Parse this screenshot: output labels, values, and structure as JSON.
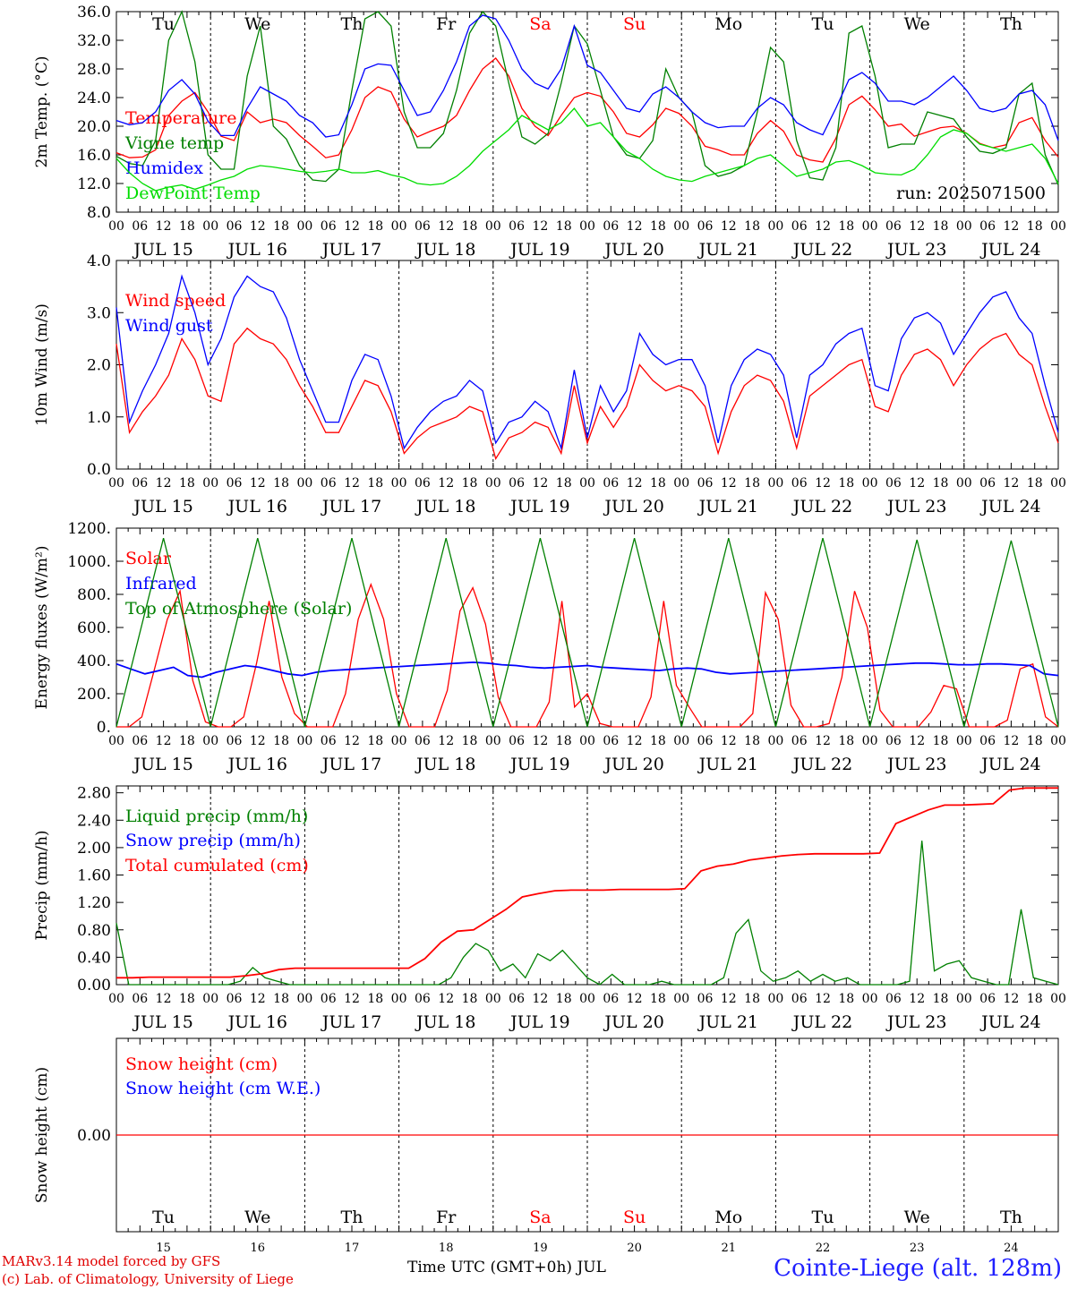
{
  "chart_data": [
    {
      "type": "line",
      "ylabel": "2m Temp. (°C)",
      "ylim": [
        8.0,
        36.0
      ],
      "yticks": [
        "8.0",
        "12.0",
        "16.0",
        "20.0",
        "24.0",
        "28.0",
        "32.0",
        "36.0"
      ],
      "annotation": "run: 2025071500",
      "series": [
        {
          "name": "Temperature",
          "color": "#ff0000",
          "values": [
            16.3,
            15.6,
            15.7,
            16.7,
            21.5,
            23.5,
            24.7,
            22.0,
            18.6,
            18.0,
            22.0,
            20.5,
            21.0,
            20.5,
            18.7,
            17.2,
            15.6,
            16.0,
            19.5,
            24.0,
            25.5,
            24.8,
            21.0,
            18.5,
            19.3,
            20.0,
            21.5,
            25.0,
            28.0,
            29.5,
            27.0,
            22.5,
            20.0,
            18.7,
            21.5,
            24.0,
            24.7,
            24.2,
            22.0,
            19.0,
            18.5,
            20.2,
            22.5,
            21.8,
            20.0,
            17.2,
            16.7,
            16.0,
            16.0,
            19.0,
            20.8,
            19.3,
            16.0,
            15.3,
            15.0,
            18.3,
            23.0,
            24.2,
            22.3,
            20.0,
            20.3,
            18.6,
            19.2,
            19.8,
            20.0,
            19.0,
            17.6,
            17.0,
            17.4,
            20.5,
            21.2,
            18.0,
            15.7
          ]
        },
        {
          "name": "Vigne temp",
          "color": "#008000",
          "values": [
            15.8,
            14.8,
            14.5,
            18.0,
            32.0,
            36.0,
            29.0,
            16.0,
            14.0,
            14.0,
            27.0,
            34.0,
            20.0,
            18.2,
            14.5,
            12.5,
            12.3,
            14.0,
            25.0,
            35.0,
            36.0,
            34.0,
            22.0,
            17.0,
            17.0,
            19.0,
            25.0,
            33.0,
            36.0,
            34.0,
            26.0,
            18.5,
            17.5,
            19.0,
            26.0,
            34.0,
            31.5,
            25.0,
            18.5,
            16.0,
            15.5,
            18.0,
            28.0,
            24.0,
            22.0,
            14.5,
            13.0,
            13.5,
            14.5,
            22.0,
            31.0,
            29.0,
            18.0,
            12.8,
            12.5,
            17.0,
            33.0,
            34.0,
            27.0,
            17.0,
            17.5,
            17.5,
            22.0,
            21.5,
            21.0,
            18.5,
            16.5,
            16.2,
            17.0,
            24.5,
            26.0,
            16.0,
            11.8
          ]
        },
        {
          "name": "Humidex",
          "color": "#0000ff",
          "values": [
            20.8,
            20.2,
            20.5,
            22.0,
            25.0,
            26.5,
            24.5,
            20.7,
            18.7,
            18.7,
            22.5,
            25.5,
            24.5,
            23.5,
            21.5,
            20.5,
            18.5,
            18.8,
            23.0,
            28.0,
            28.7,
            28.5,
            25.0,
            21.5,
            22.0,
            25.0,
            29.0,
            34.0,
            35.5,
            35.0,
            32.0,
            28.0,
            26.0,
            25.2,
            28.0,
            34.0,
            28.5,
            27.5,
            25.0,
            22.5,
            22.0,
            24.5,
            25.5,
            24.0,
            22.0,
            20.5,
            19.8,
            20.0,
            20.0,
            22.5,
            24.0,
            23.0,
            20.5,
            19.5,
            18.8,
            22.5,
            26.5,
            27.5,
            26.0,
            23.5,
            23.5,
            23.0,
            24.0,
            25.5,
            27.0,
            25.0,
            22.5,
            22.0,
            22.5,
            24.5,
            25.0,
            23.0,
            18.0
          ]
        },
        {
          "name": "DewPoint Temp",
          "color": "#00dd00",
          "values": [
            15.5,
            13.5,
            12.0,
            11.0,
            11.5,
            11.8,
            11.2,
            11.8,
            12.5,
            13.0,
            14.0,
            14.5,
            14.3,
            14.0,
            13.7,
            13.5,
            13.7,
            14.0,
            13.5,
            13.5,
            13.8,
            13.2,
            12.8,
            12.0,
            11.8,
            12.0,
            13.0,
            14.5,
            16.5,
            18.0,
            19.5,
            21.5,
            20.5,
            19.5,
            20.5,
            22.5,
            20.0,
            20.5,
            18.5,
            16.5,
            15.5,
            14.0,
            13.0,
            12.5,
            12.3,
            13.0,
            13.5,
            14.0,
            14.5,
            15.5,
            16.0,
            14.5,
            13.0,
            13.5,
            14.0,
            15.0,
            15.2,
            14.5,
            13.5,
            13.3,
            13.2,
            14.0,
            16.0,
            18.5,
            19.5,
            19.0,
            17.5,
            17.0,
            16.5,
            17.0,
            17.5,
            15.5,
            12.0
          ]
        }
      ]
    },
    {
      "type": "line",
      "ylabel": "10m Wind (m/s)",
      "ylim": [
        0.0,
        4.0
      ],
      "yticks": [
        "0.0",
        "1.0",
        "2.0",
        "3.0",
        "4.0"
      ],
      "series": [
        {
          "name": "Wind speed",
          "color": "#ff0000",
          "values": [
            2.4,
            0.7,
            1.1,
            1.4,
            1.8,
            2.5,
            2.1,
            1.4,
            1.3,
            2.4,
            2.7,
            2.5,
            2.4,
            2.1,
            1.6,
            1.2,
            0.7,
            0.7,
            1.2,
            1.7,
            1.6,
            1.1,
            0.3,
            0.6,
            0.8,
            0.9,
            1.0,
            1.2,
            1.1,
            0.2,
            0.6,
            0.7,
            0.9,
            0.8,
            0.3,
            1.6,
            0.5,
            1.2,
            0.8,
            1.2,
            2.0,
            1.7,
            1.5,
            1.6,
            1.5,
            1.2,
            0.3,
            1.1,
            1.6,
            1.8,
            1.7,
            1.3,
            0.4,
            1.4,
            1.6,
            1.8,
            2.0,
            2.1,
            1.2,
            1.1,
            1.8,
            2.2,
            2.3,
            2.1,
            1.6,
            2.0,
            2.3,
            2.5,
            2.6,
            2.2,
            2.0,
            1.2,
            0.5
          ]
        },
        {
          "name": "Wind gust",
          "color": "#0000ff",
          "values": [
            3.1,
            0.9,
            1.5,
            2.0,
            2.6,
            3.7,
            3.0,
            2.0,
            2.5,
            3.3,
            3.7,
            3.5,
            3.4,
            2.9,
            2.1,
            1.5,
            0.9,
            0.9,
            1.7,
            2.2,
            2.1,
            1.4,
            0.4,
            0.8,
            1.1,
            1.3,
            1.4,
            1.7,
            1.5,
            0.5,
            0.9,
            1.0,
            1.3,
            1.1,
            0.4,
            1.9,
            0.6,
            1.6,
            1.1,
            1.5,
            2.6,
            2.2,
            2.0,
            2.1,
            2.1,
            1.6,
            0.5,
            1.6,
            2.1,
            2.3,
            2.2,
            1.8,
            0.6,
            1.8,
            2.0,
            2.4,
            2.6,
            2.7,
            1.6,
            1.5,
            2.5,
            2.9,
            3.0,
            2.8,
            2.2,
            2.6,
            3.0,
            3.3,
            3.4,
            2.9,
            2.6,
            1.6,
            0.7
          ]
        }
      ]
    },
    {
      "type": "line",
      "ylabel": "Energy fluxes (W/m²)",
      "ylim": [
        0,
        1200
      ],
      "yticks": [
        "0.",
        "200.",
        "400.",
        "600.",
        "800.",
        "1000.",
        "1200."
      ],
      "series": [
        {
          "name": "Solar",
          "color": "#ff0000",
          "values": [
            0,
            0,
            60,
            350,
            650,
            820,
            280,
            30,
            0,
            0,
            60,
            380,
            760,
            300,
            80,
            0,
            0,
            0,
            200,
            650,
            860,
            650,
            200,
            0,
            0,
            0,
            220,
            700,
            840,
            620,
            180,
            0,
            0,
            0,
            150,
            760,
            120,
            200,
            20,
            0,
            0,
            0,
            180,
            760,
            250,
            120,
            0,
            0,
            0,
            0,
            80,
            810,
            650,
            130,
            0,
            0,
            20,
            300,
            820,
            600,
            100,
            0,
            0,
            0,
            90,
            250,
            230,
            0,
            0,
            0,
            40,
            350,
            380,
            60,
            0
          ]
        },
        {
          "name": "Infrared",
          "color": "#0000ff",
          "values": [
            380,
            350,
            320,
            340,
            360,
            310,
            300,
            330,
            350,
            370,
            360,
            340,
            320,
            310,
            330,
            340,
            345,
            350,
            355,
            360,
            365,
            370,
            375,
            380,
            385,
            390,
            385,
            375,
            370,
            360,
            355,
            360,
            365,
            370,
            360,
            355,
            350,
            345,
            340,
            350,
            355,
            350,
            330,
            320,
            325,
            330,
            335,
            340,
            345,
            350,
            355,
            360,
            365,
            370,
            375,
            380,
            385,
            385,
            380,
            375,
            375,
            380,
            380,
            375,
            370,
            320,
            310
          ]
        },
        {
          "name": "Top of Atmosphere (Solar)",
          "color": "#008000",
          "values": [
            0,
            1140,
            0,
            1140,
            0,
            1140,
            0,
            1140,
            0,
            1140,
            0,
            1140,
            0,
            1140,
            0,
            1140,
            0,
            1130,
            0,
            1125,
            0
          ]
        }
      ]
    },
    {
      "type": "line",
      "ylabel": "Precip (mm/h)",
      "ylim": [
        0.0,
        2.9
      ],
      "yticks": [
        "0.00",
        "0.40",
        "0.80",
        "1.20",
        "1.60",
        "2.00",
        "2.40",
        "2.80"
      ],
      "series": [
        {
          "name": "Liquid precip (mm/h)",
          "color": "#008000",
          "values": [
            0.9,
            0,
            0,
            0,
            0,
            0,
            0,
            0,
            0,
            0,
            0.05,
            0.25,
            0.1,
            0.05,
            0,
            0,
            0,
            0,
            0,
            0,
            0,
            0,
            0,
            0,
            0,
            0,
            0,
            0.1,
            0.4,
            0.6,
            0.5,
            0.2,
            0.3,
            0.1,
            0.45,
            0.35,
            0.5,
            0.3,
            0.1,
            0,
            0.15,
            0,
            0,
            0,
            0.05,
            0,
            0,
            0,
            0,
            0.1,
            0.75,
            0.95,
            0.2,
            0.05,
            0.1,
            0.2,
            0.05,
            0.15,
            0.05,
            0.1,
            0,
            0,
            0,
            0,
            0.05,
            2.1,
            0.2,
            0.3,
            0.35,
            0.1,
            0.05,
            0,
            0,
            1.1,
            0.1,
            0.05,
            0
          ]
        },
        {
          "name": "Snow precip (mm/h)",
          "color": "#0000ff",
          "values": []
        },
        {
          "name": "Total cumulated (cm)",
          "color": "#ff0000",
          "values": [
            0.1,
            0.1,
            0.11,
            0.11,
            0.11,
            0.11,
            0.11,
            0.11,
            0.13,
            0.16,
            0.22,
            0.24,
            0.24,
            0.24,
            0.24,
            0.24,
            0.24,
            0.24,
            0.24,
            0.38,
            0.62,
            0.78,
            0.8,
            0.95,
            1.1,
            1.28,
            1.33,
            1.37,
            1.38,
            1.38,
            1.38,
            1.39,
            1.39,
            1.39,
            1.39,
            1.4,
            1.66,
            1.73,
            1.76,
            1.82,
            1.85,
            1.88,
            1.9,
            1.91,
            1.91,
            1.91,
            1.91,
            1.92,
            2.35,
            2.45,
            2.55,
            2.62,
            2.62,
            2.63,
            2.64,
            2.84,
            2.87,
            2.87,
            2.87
          ]
        }
      ]
    },
    {
      "type": "line",
      "ylabel": "Snow height (cm)",
      "ylim": [
        -1,
        1
      ],
      "yticks": [
        "0.00"
      ],
      "series": [
        {
          "name": "Snow height (cm)",
          "color": "#ff0000",
          "values": [
            0,
            0
          ]
        },
        {
          "name": "Snow height (cm W.E.)",
          "color": "#0000ff",
          "values": []
        }
      ]
    }
  ],
  "axis": {
    "hour_ticks": [
      "00",
      "06",
      "12",
      "18"
    ],
    "end_tick": "00",
    "dates": [
      "JUL 15",
      "JUL 16",
      "JUL 17",
      "JUL 18",
      "JUL 19",
      "JUL 20",
      "JUL 21",
      "JUL 22",
      "JUL 23",
      "JUL 24"
    ],
    "weekdays": [
      "Tu",
      "We",
      "Th",
      "Fr",
      "Sa",
      "Su",
      "Mo",
      "Tu",
      "We",
      "Th"
    ],
    "weekday_colors": [
      "#000000",
      "#000000",
      "#000000",
      "#000000",
      "#ff0000",
      "#ff0000",
      "#000000",
      "#000000",
      "#000000",
      "#000000"
    ],
    "day_numbers": [
      "15",
      "16",
      "17",
      "18",
      "19",
      "20",
      "21",
      "22",
      "23",
      "24"
    ]
  },
  "footer": {
    "credit_line1": "MARv3.14 model forced by GFS",
    "credit_line2": "(c) Lab. of Climatology, University of Liege",
    "xaxis_title": "Time UTC (GMT+0h) JUL",
    "station": "Cointe-Liege (alt. 128m)"
  }
}
